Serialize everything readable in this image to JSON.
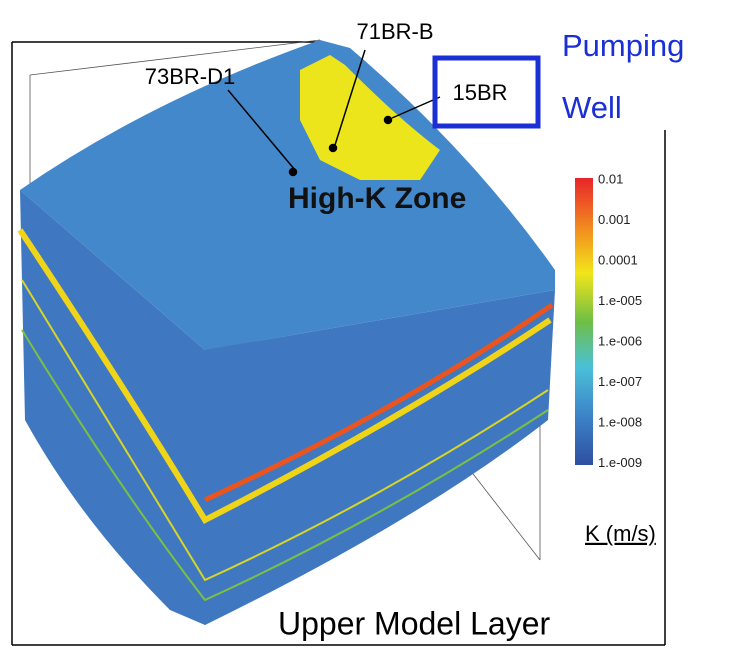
{
  "wells": {
    "left": "73BR-D1",
    "middle": "71BR-B",
    "pumping": "15BR"
  },
  "pumping_label": {
    "line1": "Pumping",
    "line2": "Well"
  },
  "zone_label": "High-K Zone",
  "colorbar": {
    "labels": [
      "0.01",
      "0.001",
      "0.0001",
      "1.e-005",
      "1.e-006",
      "1.e-007",
      "1.e-008",
      "1.e-009"
    ],
    "title": "K (m/s)"
  },
  "caption": "Upper Model Layer"
}
